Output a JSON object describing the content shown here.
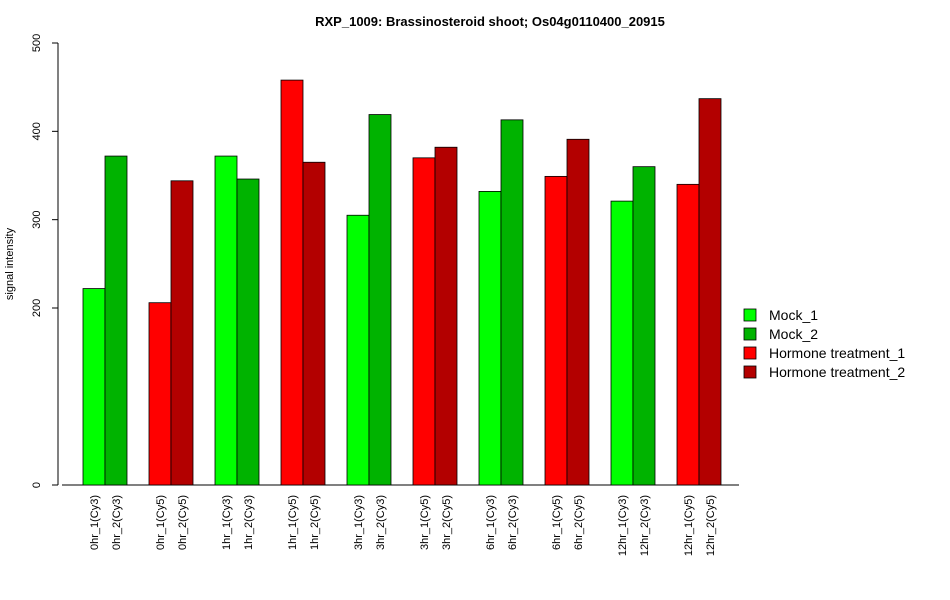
{
  "chart_data": {
    "type": "bar",
    "title": "RXP_1009: Brassinosteroid shoot; Os04g0110400_20915",
    "ylabel": "signal intensity",
    "xlabel": "",
    "ylim": [
      0,
      500
    ],
    "yticks": [
      "0",
      "200",
      "300",
      "400",
      "500"
    ],
    "groups": [
      {
        "bars": [
          {
            "label": "0hr_1(Cy3)",
            "value": 222,
            "series": 0
          },
          {
            "label": "0hr_2(Cy3)",
            "value": 372,
            "series": 1
          }
        ]
      },
      {
        "bars": [
          {
            "label": "0hr_1(Cy5)",
            "value": 206,
            "series": 2
          },
          {
            "label": "0hr_2(Cy5)",
            "value": 344,
            "series": 3
          }
        ]
      },
      {
        "bars": [
          {
            "label": "1hr_1(Cy3)",
            "value": 372,
            "series": 0
          },
          {
            "label": "1hr_2(Cy3)",
            "value": 346,
            "series": 1
          }
        ]
      },
      {
        "bars": [
          {
            "label": "1hr_1(Cy5)",
            "value": 458,
            "series": 2
          },
          {
            "label": "1hr_2(Cy5)",
            "value": 365,
            "series": 3
          }
        ]
      },
      {
        "bars": [
          {
            "label": "3hr_1(Cy3)",
            "value": 305,
            "series": 0
          },
          {
            "label": "3hr_2(Cy3)",
            "value": 419,
            "series": 1
          }
        ]
      },
      {
        "bars": [
          {
            "label": "3hr_1(Cy5)",
            "value": 370,
            "series": 2
          },
          {
            "label": "3hr_2(Cy5)",
            "value": 382,
            "series": 3
          }
        ]
      },
      {
        "bars": [
          {
            "label": "6hr_1(Cy3)",
            "value": 332,
            "series": 0
          },
          {
            "label": "6hr_2(Cy3)",
            "value": 413,
            "series": 1
          }
        ]
      },
      {
        "bars": [
          {
            "label": "6hr_1(Cy5)",
            "value": 349,
            "series": 2
          },
          {
            "label": "6hr_2(Cy5)",
            "value": 391,
            "series": 3
          }
        ]
      },
      {
        "bars": [
          {
            "label": "12hr_1(Cy3)",
            "value": 321,
            "series": 0
          },
          {
            "label": "12hr_2(Cy3)",
            "value": 360,
            "series": 1
          }
        ]
      },
      {
        "bars": [
          {
            "label": "12hr_1(Cy5)",
            "value": 340,
            "series": 2
          },
          {
            "label": "12hr_2(Cy5)",
            "value": 437,
            "series": 3
          }
        ]
      }
    ],
    "series": [
      {
        "name": "Mock_1",
        "color": "#00ff00"
      },
      {
        "name": "Mock_2",
        "color": "#00b300"
      },
      {
        "name": "Hormone treatment_1",
        "color": "#ff0000"
      },
      {
        "name": "Hormone treatment_2",
        "color": "#b30000"
      }
    ],
    "legend_position": "right",
    "grid": false
  }
}
